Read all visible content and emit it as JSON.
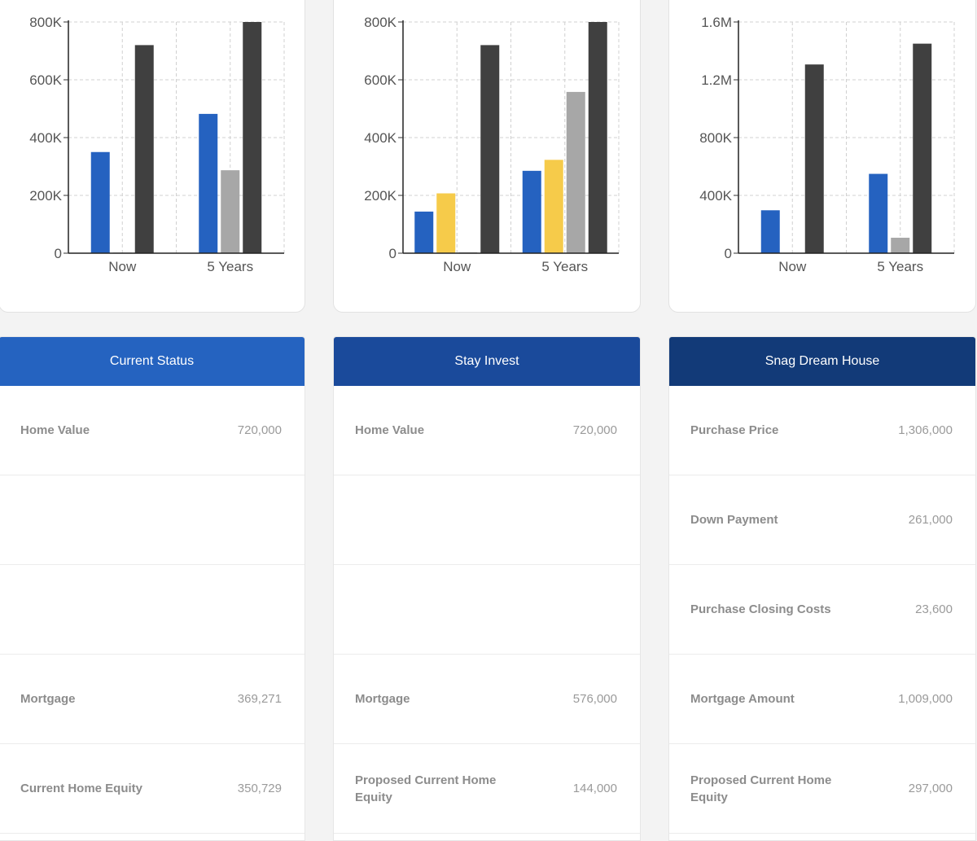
{
  "colors": {
    "blue": "#2562c0",
    "yellow": "#f6cb4a",
    "light_gray": "#a7a7a7",
    "dark_gray": "#404040"
  },
  "chart_data": [
    {
      "type": "bar",
      "categories": [
        "Now",
        "5 Years"
      ],
      "y_ticks": [
        0,
        200000,
        400000,
        600000,
        800000
      ],
      "y_tick_labels": [
        "0",
        "200K",
        "400K",
        "600K",
        "800K"
      ],
      "ylim": [
        0,
        800000
      ],
      "grid": true,
      "series": [
        {
          "color": "#2562c0",
          "values": [
            350000,
            482000
          ]
        },
        {
          "color": "#a7a7a7",
          "values": [
            2000,
            287000
          ]
        },
        {
          "color": "#404040",
          "values": [
            720000,
            800000
          ]
        }
      ]
    },
    {
      "type": "bar",
      "categories": [
        "Now",
        "5 Years"
      ],
      "y_ticks": [
        0,
        200000,
        400000,
        600000,
        800000
      ],
      "y_tick_labels": [
        "0",
        "200K",
        "400K",
        "600K",
        "800K"
      ],
      "ylim": [
        0,
        800000
      ],
      "grid": true,
      "series": [
        {
          "color": "#2562c0",
          "values": [
            144000,
            285000
          ]
        },
        {
          "color": "#f6cb4a",
          "values": [
            207000,
            323000
          ]
        },
        {
          "color": "#a7a7a7",
          "values": [
            3000,
            558000
          ]
        },
        {
          "color": "#404040",
          "values": [
            720000,
            800000
          ]
        }
      ]
    },
    {
      "type": "bar",
      "categories": [
        "Now",
        "5 Years"
      ],
      "y_ticks": [
        0,
        400000,
        800000,
        1200000,
        1600000
      ],
      "y_tick_labels": [
        "0",
        "400K",
        "800K",
        "1.2M",
        "1.6M"
      ],
      "ylim": [
        0,
        1600000
      ],
      "grid": true,
      "series": [
        {
          "color": "#2562c0",
          "values": [
            297000,
            549000
          ]
        },
        {
          "color": "#a7a7a7",
          "values": [
            0,
            107000
          ]
        },
        {
          "color": "#404040",
          "values": [
            1306000,
            1450000
          ]
        }
      ]
    }
  ],
  "tables": [
    {
      "title": "Current Status",
      "header_color": "#2563c0",
      "rows": [
        {
          "label": "Home Value",
          "value": "720,000"
        },
        {
          "label": "",
          "value": ""
        },
        {
          "label": "",
          "value": ""
        },
        {
          "label": "Mortgage",
          "value": "369,271"
        },
        {
          "label": "Current Home Equity",
          "value": "350,729"
        }
      ]
    },
    {
      "title": "Stay Invest",
      "header_color": "#1a4a9b",
      "rows": [
        {
          "label": "Home Value",
          "value": "720,000"
        },
        {
          "label": "",
          "value": ""
        },
        {
          "label": "",
          "value": ""
        },
        {
          "label": "Mortgage",
          "value": "576,000"
        },
        {
          "label": "Proposed Current Home Equity",
          "value": "144,000"
        }
      ]
    },
    {
      "title": "Snag Dream House",
      "header_color": "#123a78",
      "rows": [
        {
          "label": "Purchase Price",
          "value": "1,306,000"
        },
        {
          "label": "Down Payment",
          "value": "261,000"
        },
        {
          "label": "Purchase Closing Costs",
          "value": "23,600"
        },
        {
          "label": "Mortgage Amount",
          "value": "1,009,000"
        },
        {
          "label": "Proposed Current Home Equity",
          "value": "297,000"
        }
      ]
    }
  ]
}
